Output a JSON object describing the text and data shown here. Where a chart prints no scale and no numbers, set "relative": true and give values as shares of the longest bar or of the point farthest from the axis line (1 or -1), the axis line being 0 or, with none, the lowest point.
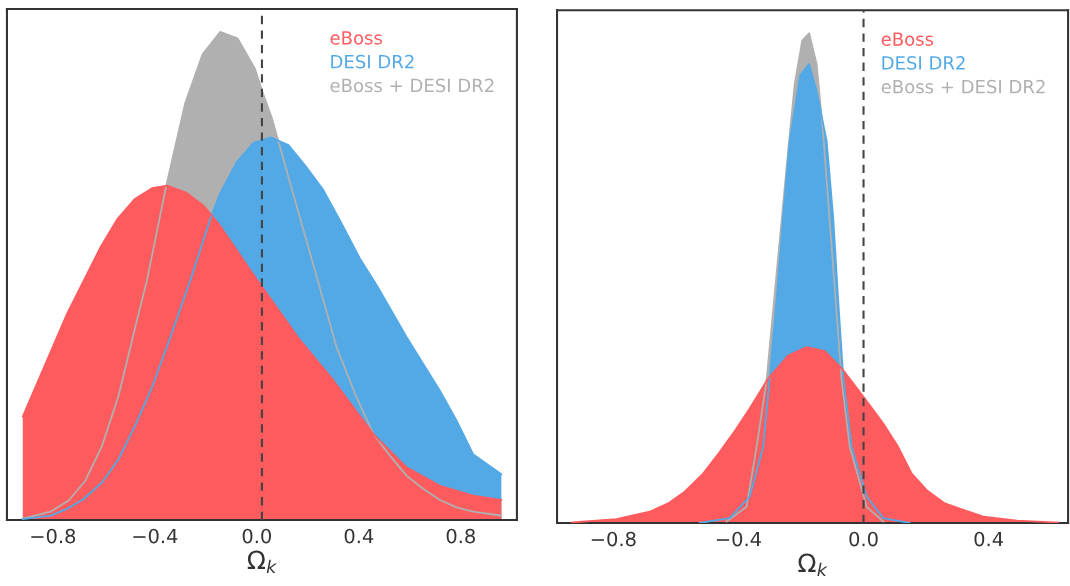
{
  "chart_data": [
    {
      "type": "area",
      "relative": true,
      "xlabel": "Ω$_{k}$",
      "xlim": [
        -0.98,
        1.02
      ],
      "xticks": [
        {
          "value": -0.8,
          "label": "−0.8"
        },
        {
          "value": -0.4,
          "label": "−0.4"
        },
        {
          "value": 0.0,
          "label": "0.0"
        },
        {
          "value": 0.4,
          "label": "0.4"
        },
        {
          "value": 0.8,
          "label": "0.8"
        }
      ],
      "legend": "top right",
      "ref_lines": [
        {
          "axis": "x",
          "value": 0.02,
          "color": "#444444",
          "line_style": "dashed"
        }
      ],
      "series": [
        {
          "name": "eBoss",
          "color": "#fd5b5e",
          "x": [
            -0.918,
            -0.744,
            -0.613,
            -0.548,
            -0.48,
            -0.411,
            -0.352,
            -0.278,
            -0.209,
            -0.15,
            -0.092,
            -0.026,
            0.039,
            0.17,
            0.3,
            0.457,
            0.587,
            0.718,
            0.848,
            0.959
          ],
          "values": [
            0.212,
            0.423,
            0.559,
            0.616,
            0.657,
            0.68,
            0.685,
            0.671,
            0.644,
            0.607,
            0.563,
            0.512,
            0.464,
            0.368,
            0.286,
            0.176,
            0.108,
            0.07,
            0.05,
            0.041
          ]
        },
        {
          "name": "DESI DR2",
          "color": "#52a9e6",
          "x": [
            -0.918,
            -0.809,
            -0.744,
            -0.679,
            -0.607,
            -0.542,
            -0.477,
            -0.411,
            -0.339,
            -0.261,
            -0.18,
            -0.144,
            -0.078,
            -0.013,
            0.055,
            0.124,
            0.189,
            0.261,
            0.326,
            0.404,
            0.47,
            0.587,
            0.652,
            0.718,
            0.783,
            0.848,
            0.959
          ],
          "values": [
            0.002,
            0.009,
            0.023,
            0.043,
            0.077,
            0.125,
            0.194,
            0.272,
            0.375,
            0.491,
            0.621,
            0.669,
            0.734,
            0.773,
            0.784,
            0.768,
            0.727,
            0.676,
            0.614,
            0.536,
            0.481,
            0.375,
            0.32,
            0.265,
            0.204,
            0.135,
            0.094
          ]
        },
        {
          "name": "eBoss + DESI DR2",
          "color": "#b0b0b0",
          "x": [
            -0.918,
            -0.809,
            -0.738,
            -0.672,
            -0.607,
            -0.542,
            -0.477,
            -0.431,
            -0.356,
            -0.281,
            -0.213,
            -0.144,
            -0.076,
            -0.007,
            0.026,
            0.059,
            0.085,
            0.17,
            0.255,
            0.313,
            0.385,
            0.457,
            0.522,
            0.587,
            0.652,
            0.718,
            0.783,
            0.848,
            0.959
          ],
          "values": [
            0.003,
            0.017,
            0.04,
            0.081,
            0.152,
            0.255,
            0.395,
            0.491,
            0.683,
            0.854,
            0.954,
            1.0,
            0.987,
            0.924,
            0.871,
            0.823,
            0.775,
            0.618,
            0.461,
            0.354,
            0.259,
            0.176,
            0.132,
            0.091,
            0.064,
            0.041,
            0.026,
            0.017,
            0.009
          ]
        }
      ]
    },
    {
      "type": "area",
      "relative": true,
      "xlabel": "Ω$_{k}$",
      "xlim": [
        -0.98,
        0.654
      ],
      "xticks": [
        {
          "value": -0.8,
          "label": "−0.8"
        },
        {
          "value": -0.4,
          "label": "−0.4"
        },
        {
          "value": 0.0,
          "label": "0.0"
        },
        {
          "value": 0.4,
          "label": "0.4"
        }
      ],
      "legend": "top right",
      "ref_lines": [
        {
          "axis": "x",
          "value": 0.0,
          "color": "#444444",
          "line_style": "dashed"
        }
      ],
      "series": [
        {
          "name": "eBoss",
          "color": "#fd5b5e",
          "x": [
            -0.932,
            -0.79,
            -0.684,
            -0.625,
            -0.572,
            -0.513,
            -0.46,
            -0.417,
            -0.364,
            -0.305,
            -0.241,
            -0.182,
            -0.124,
            -0.065,
            0.004,
            0.063,
            0.111,
            0.154,
            0.202,
            0.26,
            0.319,
            0.383,
            0.49,
            0.622
          ],
          "values": [
            0.001,
            0.008,
            0.023,
            0.04,
            0.064,
            0.101,
            0.145,
            0.183,
            0.234,
            0.295,
            0.342,
            0.359,
            0.351,
            0.312,
            0.254,
            0.203,
            0.155,
            0.101,
            0.067,
            0.04,
            0.027,
            0.013,
            0.005,
            0.001
          ]
        },
        {
          "name": "DESI DR2",
          "color": "#52a9e6",
          "x": [
            -0.524,
            -0.428,
            -0.364,
            -0.321,
            -0.3,
            -0.278,
            -0.257,
            -0.236,
            -0.202,
            -0.174,
            -0.15,
            -0.118,
            -0.097,
            -0.081,
            -0.065,
            -0.038,
            0.01,
            0.063,
            0.148
          ],
          "values": [
            0.0,
            0.01,
            0.054,
            0.155,
            0.298,
            0.454,
            0.624,
            0.78,
            0.915,
            0.937,
            0.882,
            0.78,
            0.624,
            0.454,
            0.298,
            0.155,
            0.054,
            0.01,
            0.0
          ]
        },
        {
          "name": "eBoss + DESI DR2",
          "color": "#b0b0b0",
          "x": [
            -0.438,
            -0.374,
            -0.342,
            -0.31,
            -0.241,
            -0.22,
            -0.196,
            -0.174,
            -0.15,
            -0.129,
            -0.07,
            -0.044,
            0.01,
            0.063
          ],
          "values": [
            0.003,
            0.033,
            0.155,
            0.291,
            0.76,
            0.896,
            0.985,
            1.0,
            0.937,
            0.794,
            0.291,
            0.155,
            0.033,
            0.003
          ]
        }
      ]
    }
  ]
}
